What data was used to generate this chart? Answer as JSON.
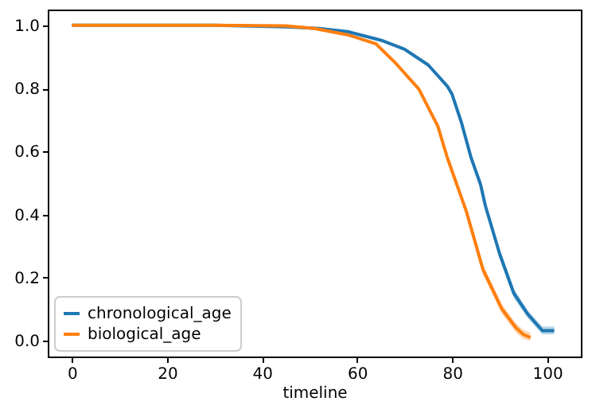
{
  "chart_data": {
    "type": "line",
    "xlabel": "timeline",
    "xlim": [
      -5.1,
      107.1
    ],
    "xticks": [
      0,
      20,
      40,
      60,
      80,
      100
    ],
    "ylim": [
      -0.05,
      1.05
    ],
    "yticks": [
      {
        "value": 0,
        "label": "0.0"
      },
      {
        "value": 0.2,
        "label": "0.2"
      },
      {
        "value": 0.4,
        "label": "0.4"
      },
      {
        "value": 0.6,
        "label": "0.6"
      },
      {
        "value": 0.8,
        "label": "0.8"
      },
      {
        "value": 1,
        "label": "1.0"
      }
    ],
    "legend": "bottom left",
    "grid": false,
    "series": [
      {
        "name": "chronological_age",
        "color": "#1f77b4",
        "x": [
          0,
          30,
          45,
          52,
          58,
          65,
          70,
          75,
          79,
          80,
          82,
          84,
          86,
          87,
          90,
          93,
          96,
          99,
          101.5
        ],
        "values": [
          1.0,
          1.0,
          0.995,
          0.99,
          0.98,
          0.953,
          0.924,
          0.874,
          0.807,
          0.781,
          0.69,
          0.58,
          0.495,
          0.428,
          0.276,
          0.15,
          0.083,
          0.032,
          0.032
        ],
        "lower": [
          null,
          null,
          null,
          null,
          null,
          null,
          null,
          null,
          null,
          null,
          null,
          null,
          0.485,
          0.415,
          0.26,
          0.135,
          0.07,
          0.02,
          0.02
        ],
        "upper": [
          null,
          null,
          null,
          null,
          null,
          null,
          null,
          null,
          null,
          null,
          null,
          null,
          0.505,
          0.44,
          0.29,
          0.165,
          0.095,
          0.045,
          0.045
        ]
      },
      {
        "name": "biological_age",
        "color": "#ff7f0e",
        "x": [
          0,
          30,
          45,
          51,
          58,
          64,
          68,
          73,
          77,
          79,
          81,
          83,
          86.5,
          90.5,
          93.5,
          95,
          96.5
        ],
        "values": [
          1.0,
          1.0,
          0.998,
          0.99,
          0.97,
          0.941,
          0.882,
          0.798,
          0.68,
          0.58,
          0.495,
          0.41,
          0.226,
          0.1,
          0.04,
          0.02,
          0.01
        ],
        "lower": [
          null,
          null,
          null,
          null,
          null,
          null,
          null,
          null,
          null,
          null,
          null,
          0.4,
          0.21,
          0.085,
          0.025,
          0.005,
          0.0
        ],
        "upper": [
          null,
          null,
          null,
          null,
          null,
          null,
          null,
          null,
          null,
          null,
          null,
          0.42,
          0.24,
          0.115,
          0.055,
          0.035,
          0.025
        ]
      }
    ]
  }
}
